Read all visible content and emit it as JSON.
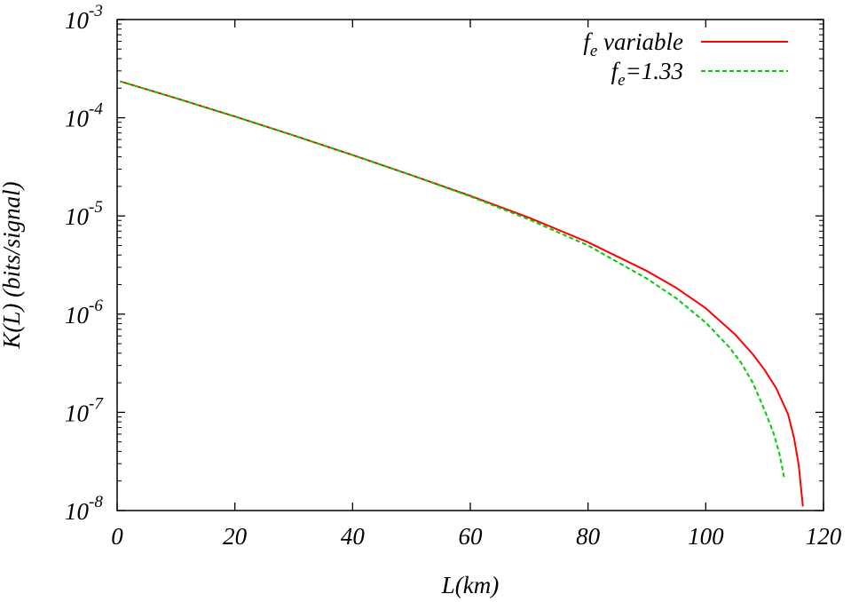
{
  "chart_data": {
    "type": "line",
    "xlabel": "L(km)",
    "ylabel": "K(L) (bits/signal)",
    "xlim": [
      0,
      120
    ],
    "ylim": [
      1e-08,
      0.001
    ],
    "y_scale": "log",
    "grid": false,
    "legend_position": "top-right",
    "x_ticks": [
      "0",
      "20",
      "40",
      "60",
      "80",
      "100",
      "120"
    ],
    "y_ticks": [
      {
        "base": "10",
        "exp": "-3",
        "value": 0.001
      },
      {
        "base": "10",
        "exp": "-4",
        "value": 0.0001
      },
      {
        "base": "10",
        "exp": "-5",
        "value": 1e-05
      },
      {
        "base": "10",
        "exp": "-6",
        "value": 1e-06
      },
      {
        "base": "10",
        "exp": "-7",
        "value": 1e-07
      },
      {
        "base": "10",
        "exp": "-8",
        "value": 1e-08
      }
    ],
    "series": [
      {
        "legend_main": "f",
        "legend_sub": "e",
        "legend_rest": " variable",
        "color": "#ff0000",
        "dash": "solid",
        "x": [
          0.5,
          10,
          20,
          30,
          40,
          50,
          60,
          70,
          80,
          90,
          95,
          100,
          105,
          108,
          110,
          112,
          114,
          115,
          115.8,
          116.5
        ],
        "y": [
          0.000235,
          0.000158,
          0.000103,
          6.6e-05,
          4.17e-05,
          2.6e-05,
          1.6e-05,
          9.6e-06,
          5.4e-06,
          2.75e-06,
          1.85e-06,
          1.15e-06,
          6.2e-07,
          3.9e-07,
          2.7e-07,
          1.75e-07,
          9.5e-08,
          5.5e-08,
          2.9e-08,
          1.1e-08
        ]
      },
      {
        "legend_main": "f",
        "legend_sub": "e",
        "legend_rest": "=1.33",
        "color": "#00cc00",
        "dash": "dashed",
        "x": [
          0.5,
          10,
          20,
          30,
          40,
          50,
          60,
          70,
          80,
          90,
          95,
          100,
          104,
          106,
          108,
          110,
          111.5,
          112.5,
          113.3
        ],
        "y": [
          0.000235,
          0.000158,
          0.000103,
          6.6e-05,
          4.17e-05,
          2.6e-05,
          1.58e-05,
          9.2e-06,
          5e-06,
          2.3e-06,
          1.45e-06,
          8.2e-07,
          4.6e-07,
          3.2e-07,
          2e-07,
          1.05e-07,
          6.2e-08,
          3.8e-08,
          2.2e-08
        ]
      }
    ]
  }
}
